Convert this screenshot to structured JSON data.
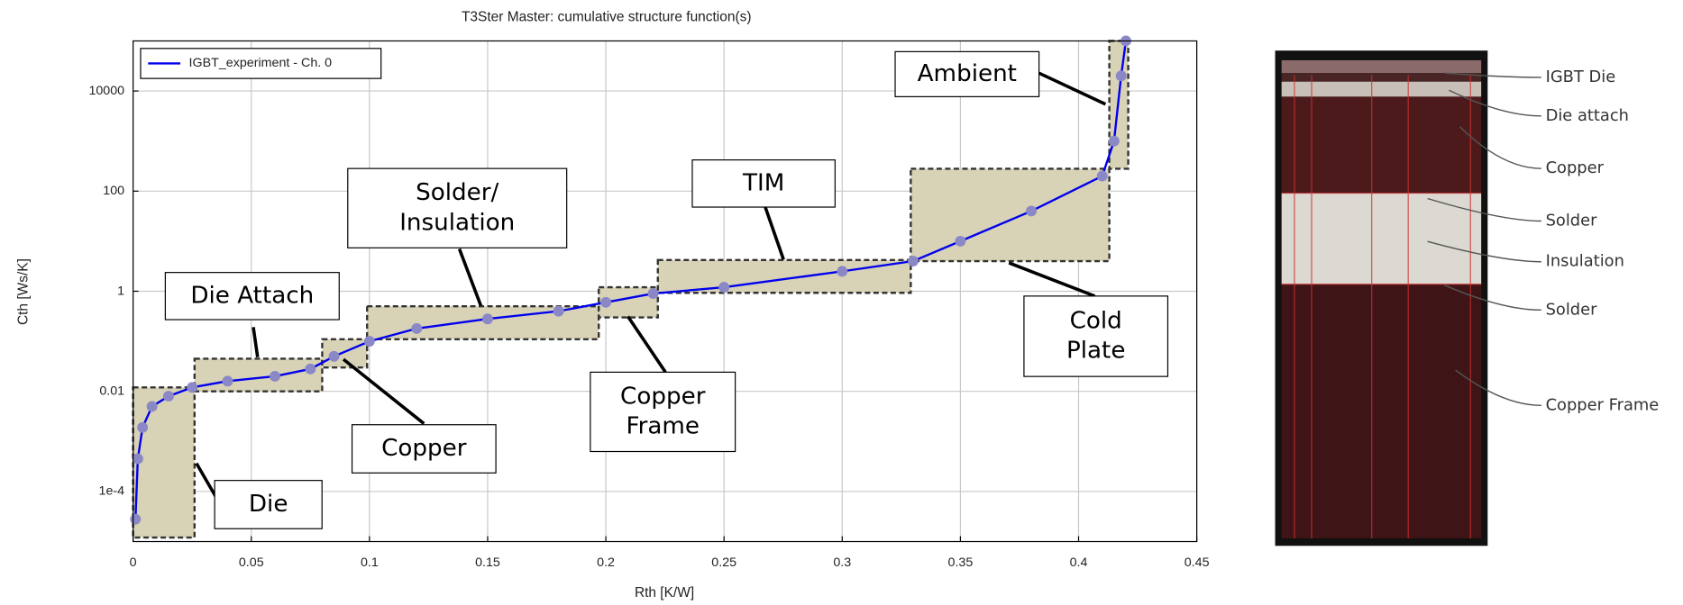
{
  "chart_data": {
    "type": "line",
    "title": "T3Ster Master: cumulative structure function(s)",
    "x_label": "Rth  [K/W]",
    "y_label": "Cth  [Ws/K]",
    "y_scale": "log",
    "grid": true,
    "legend": "top-left",
    "xlim": [
      0,
      0.45
    ],
    "xticks": [
      0,
      0.05,
      0.1,
      0.15,
      0.2,
      0.25,
      0.3,
      0.35,
      0.4,
      0.45
    ],
    "ylim": [
      1e-05,
      100000
    ],
    "yticks": [
      {
        "value": 0.0001,
        "label": "1e-4"
      },
      0.01,
      1,
      100,
      10000
    ],
    "series": [
      {
        "name": "IGBT_experiment - Ch. 0",
        "color": "#0000ee",
        "marker_color": "#8a88c6",
        "x": [
          0.001,
          0.002,
          0.004,
          0.008,
          0.015,
          0.025,
          0.04,
          0.06,
          0.075,
          0.085,
          0.1,
          0.12,
          0.15,
          0.18,
          0.2,
          0.22,
          0.25,
          0.3,
          0.33,
          0.35,
          0.38,
          0.41,
          0.415,
          0.418,
          0.42
        ],
        "values": [
          2.8e-05,
          0.00045,
          0.0019,
          0.005,
          0.008,
          0.012,
          0.016,
          0.02,
          0.028,
          0.05,
          0.1,
          0.18,
          0.28,
          0.4,
          0.6,
          0.9,
          1.2,
          2.5,
          4,
          10,
          40,
          200,
          1000,
          20000,
          100000
        ]
      }
    ],
    "regions": [
      {
        "label": [
          "Die"
        ],
        "x": [
          0,
          0.026
        ],
        "y": [
          1.2e-05,
          0.012
        ]
      },
      {
        "label": [
          "Die Attach"
        ],
        "x": [
          0.026,
          0.08
        ],
        "y": [
          0.01,
          0.045
        ]
      },
      {
        "label": [
          "Copper"
        ],
        "x": [
          0.08,
          0.099
        ],
        "y": [
          0.03,
          0.11
        ]
      },
      {
        "label": [
          "Solder/",
          "Insulation"
        ],
        "x": [
          0.099,
          0.197
        ],
        "y": [
          0.11,
          0.5
        ]
      },
      {
        "label": [
          "Copper",
          "Frame"
        ],
        "x": [
          0.197,
          0.222
        ],
        "y": [
          0.3,
          1.2
        ]
      },
      {
        "label": [
          "TIM"
        ],
        "x": [
          0.222,
          0.329
        ],
        "y": [
          0.93,
          4.2
        ]
      },
      {
        "label": [
          "Cold",
          "Plate"
        ],
        "x": [
          0.329,
          0.413
        ],
        "y": [
          4,
          280
        ]
      },
      {
        "label": [
          "Ambient"
        ],
        "x": [
          0.413,
          0.421
        ],
        "y": [
          280,
          100000
        ]
      }
    ],
    "image_labels": [
      "IGBT Die",
      "Die attach",
      "Copper",
      "Solder",
      "Insulation",
      "Solder",
      "Copper Frame"
    ]
  }
}
